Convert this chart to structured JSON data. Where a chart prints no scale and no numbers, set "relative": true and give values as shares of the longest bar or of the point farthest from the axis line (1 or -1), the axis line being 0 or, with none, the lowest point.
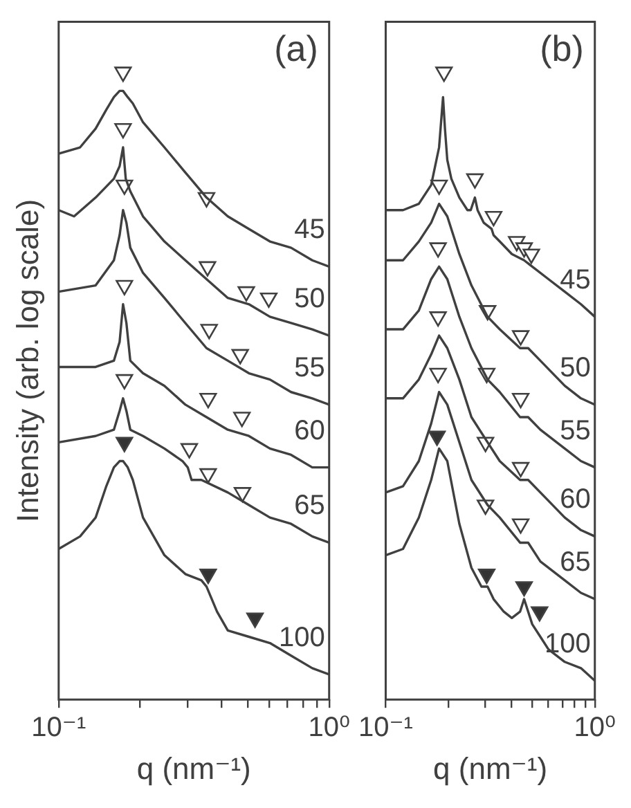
{
  "chart_data": [
    {
      "type": "line",
      "title": "(a)",
      "xlabel": "q (nm⁻¹)",
      "ylabel": "Intensity (arb. log scale)",
      "relative": true,
      "log": "x",
      "marker": "none",
      "xlim": [
        0.1,
        1
      ],
      "xticks": [
        {
          "value": 0.1,
          "label": "10⁻¹"
        },
        {
          "value": 0.2,
          "label": null
        },
        {
          "value": 0.3,
          "label": null
        },
        {
          "value": 0.4,
          "label": null
        },
        {
          "value": 0.5,
          "label": null
        },
        {
          "value": 0.6,
          "label": null
        },
        {
          "value": 0.7,
          "label": null
        },
        {
          "value": 0.8,
          "label": null
        },
        {
          "value": 0.9,
          "label": null
        },
        {
          "value": 1,
          "label": "10⁰"
        }
      ],
      "series": [
        {
          "name": "45",
          "color": "#404040",
          "x": [
            0.1,
            0.12,
            0.137,
            0.15,
            0.16,
            0.168,
            0.173,
            0.18,
            0.188,
            0.205,
            0.246,
            0.294,
            0.352,
            0.422,
            0.505,
            0.604,
            0.723,
            0.866,
            1.0
          ],
          "values": [
            0.87,
            0.88,
            0.91,
            0.94,
            0.96,
            0.97,
            0.97,
            0.96,
            0.95,
            0.92,
            0.88,
            0.84,
            0.8,
            0.77,
            0.75,
            0.73,
            0.72,
            0.7,
            0.69
          ]
        },
        {
          "name": "50",
          "color": "#404040",
          "x": [
            0.1,
            0.114,
            0.137,
            0.16,
            0.168,
            0.173,
            0.177,
            0.184,
            0.205,
            0.246,
            0.294,
            0.352,
            0.422,
            0.505,
            0.604,
            0.723,
            0.866,
            1.0
          ],
          "values": [
            0.78,
            0.77,
            0.8,
            0.83,
            0.85,
            0.88,
            0.83,
            0.81,
            0.77,
            0.73,
            0.7,
            0.67,
            0.64,
            0.63,
            0.61,
            0.6,
            0.59,
            0.58
          ]
        },
        {
          "name": "55",
          "color": "#404040",
          "x": [
            0.1,
            0.137,
            0.16,
            0.168,
            0.173,
            0.178,
            0.184,
            0.205,
            0.246,
            0.294,
            0.352,
            0.422,
            0.505,
            0.604,
            0.723,
            0.866,
            1.0
          ],
          "values": [
            0.65,
            0.66,
            0.7,
            0.74,
            0.78,
            0.76,
            0.72,
            0.68,
            0.64,
            0.6,
            0.56,
            0.54,
            0.52,
            0.51,
            0.49,
            0.48,
            0.47
          ]
        },
        {
          "name": "60",
          "color": "#404040",
          "x": [
            0.1,
            0.137,
            0.16,
            0.168,
            0.173,
            0.178,
            0.184,
            0.205,
            0.246,
            0.294,
            0.352,
            0.422,
            0.505,
            0.604,
            0.723,
            0.866,
            1.0
          ],
          "values": [
            0.53,
            0.53,
            0.54,
            0.57,
            0.63,
            0.6,
            0.54,
            0.52,
            0.5,
            0.47,
            0.45,
            0.43,
            0.42,
            0.4,
            0.39,
            0.37,
            0.37
          ]
        },
        {
          "name": "65",
          "color": "#404040",
          "x": [
            0.1,
            0.137,
            0.16,
            0.168,
            0.173,
            0.178,
            0.184,
            0.205,
            0.246,
            0.287,
            0.3,
            0.31,
            0.337,
            0.422,
            0.505,
            0.604,
            0.723,
            0.866,
            1.0
          ],
          "values": [
            0.41,
            0.42,
            0.43,
            0.46,
            0.48,
            0.46,
            0.43,
            0.42,
            0.4,
            0.38,
            0.37,
            0.35,
            0.35,
            0.33,
            0.31,
            0.29,
            0.28,
            0.26,
            0.25
          ]
        },
        {
          "name": "100",
          "color": "#404040",
          "x": [
            0.1,
            0.12,
            0.137,
            0.15,
            0.16,
            0.168,
            0.173,
            0.18,
            0.188,
            0.205,
            0.246,
            0.294,
            0.337,
            0.352,
            0.385,
            0.422,
            0.505,
            0.604,
            0.723,
            0.866,
            1.0
          ],
          "values": [
            0.24,
            0.26,
            0.29,
            0.34,
            0.37,
            0.38,
            0.38,
            0.37,
            0.35,
            0.29,
            0.23,
            0.2,
            0.19,
            0.18,
            0.14,
            0.11,
            0.1,
            0.09,
            0.07,
            0.05,
            0.04
          ]
        },
        {
          "type": "scatter",
          "marker": "triangle",
          "color": "#ffffff",
          "x": [
            0.173,
            0.173,
            0.352,
            0.175,
            0.355,
            0.494,
            0.598,
            0.175,
            0.36,
            0.469,
            0.175,
            0.357,
            0.476,
            0.304,
            0.357,
            0.478
          ],
          "values": [
            1.0,
            0.91,
            0.8,
            0.82,
            0.69,
            0.65,
            0.64,
            0.66,
            0.59,
            0.55,
            0.51,
            0.48,
            0.45,
            0.4,
            0.36,
            0.33
          ]
        },
        {
          "type": "scatter",
          "marker": "triangle",
          "color": "#333333",
          "x": [
            0.175,
            0.357,
            0.532
          ],
          "values": [
            0.41,
            0.2,
            0.13
          ]
        }
      ]
    },
    {
      "type": "line",
      "title": "(b)",
      "xlabel": "q (nm⁻¹)",
      "relative": true,
      "log": "x",
      "marker": "none",
      "xlim": [
        0.1,
        1
      ],
      "xticks": [
        {
          "value": 0.1,
          "label": "10⁻¹"
        },
        {
          "value": 0.2,
          "label": null
        },
        {
          "value": 0.3,
          "label": null
        },
        {
          "value": 0.4,
          "label": null
        },
        {
          "value": 0.5,
          "label": null
        },
        {
          "value": 0.6,
          "label": null
        },
        {
          "value": 0.7,
          "label": null
        },
        {
          "value": 0.8,
          "label": null
        },
        {
          "value": 0.9,
          "label": null
        },
        {
          "value": 1,
          "label": "10⁰"
        }
      ],
      "series": [
        {
          "name": "45",
          "color": "#404040",
          "x": [
            0.1,
            0.121,
            0.144,
            0.165,
            0.18,
            0.188,
            0.192,
            0.197,
            0.206,
            0.225,
            0.246,
            0.255,
            0.267,
            0.275,
            0.294,
            0.321,
            0.328,
            0.351,
            0.401,
            0.459,
            0.502,
            0.6,
            0.718,
            0.858,
            1.0
          ],
          "values": [
            0.78,
            0.78,
            0.79,
            0.82,
            0.88,
            0.96,
            0.91,
            0.86,
            0.83,
            0.8,
            0.78,
            0.78,
            0.8,
            0.78,
            0.76,
            0.75,
            0.74,
            0.73,
            0.71,
            0.7,
            0.69,
            0.67,
            0.65,
            0.63,
            0.61
          ]
        },
        {
          "name": "50",
          "color": "#404040",
          "x": [
            0.1,
            0.121,
            0.144,
            0.165,
            0.18,
            0.197,
            0.225,
            0.257,
            0.307,
            0.351,
            0.439,
            0.48,
            0.549,
            0.718,
            0.858,
            1.0
          ],
          "values": [
            0.7,
            0.7,
            0.73,
            0.76,
            0.79,
            0.77,
            0.71,
            0.66,
            0.61,
            0.59,
            0.56,
            0.56,
            0.54,
            0.5,
            0.48,
            0.47
          ]
        },
        {
          "name": "55",
          "color": "#404040",
          "x": [
            0.1,
            0.121,
            0.144,
            0.165,
            0.18,
            0.197,
            0.225,
            0.257,
            0.307,
            0.351,
            0.439,
            0.48,
            0.549,
            0.718,
            0.858,
            1.0
          ],
          "values": [
            0.59,
            0.59,
            0.62,
            0.67,
            0.69,
            0.67,
            0.61,
            0.56,
            0.51,
            0.49,
            0.45,
            0.45,
            0.43,
            0.4,
            0.38,
            0.37
          ]
        },
        {
          "name": "60",
          "color": "#404040",
          "x": [
            0.1,
            0.121,
            0.144,
            0.165,
            0.18,
            0.197,
            0.225,
            0.257,
            0.307,
            0.351,
            0.439,
            0.48,
            0.549,
            0.718,
            0.858,
            1.0
          ],
          "values": [
            0.48,
            0.48,
            0.51,
            0.55,
            0.58,
            0.56,
            0.51,
            0.45,
            0.41,
            0.38,
            0.35,
            0.35,
            0.33,
            0.29,
            0.27,
            0.26
          ]
        },
        {
          "name": "65",
          "color": "#404040",
          "x": [
            0.1,
            0.121,
            0.144,
            0.165,
            0.18,
            0.197,
            0.225,
            0.257,
            0.307,
            0.351,
            0.439,
            0.48,
            0.549,
            0.718,
            0.858,
            1.0
          ],
          "values": [
            0.33,
            0.34,
            0.38,
            0.44,
            0.49,
            0.47,
            0.41,
            0.35,
            0.31,
            0.29,
            0.25,
            0.25,
            0.22,
            0.19,
            0.17,
            0.16
          ]
        },
        {
          "name": "100",
          "color": "#404040",
          "x": [
            0.1,
            0.121,
            0.144,
            0.165,
            0.18,
            0.197,
            0.225,
            0.257,
            0.287,
            0.307,
            0.328,
            0.367,
            0.401,
            0.439,
            0.459,
            0.48,
            0.502,
            0.549,
            0.6,
            0.718,
            0.858,
            1.0
          ],
          "values": [
            0.23,
            0.24,
            0.29,
            0.35,
            0.4,
            0.38,
            0.28,
            0.21,
            0.18,
            0.18,
            0.16,
            0.14,
            0.13,
            0.14,
            0.16,
            0.14,
            0.12,
            0.1,
            0.08,
            0.06,
            0.05,
            0.03
          ]
        },
        {
          "type": "scatter",
          "marker": "triangle",
          "color": "#ffffff",
          "x": [
            0.19,
            0.267,
            0.18,
            0.328,
            0.423,
            0.459,
            0.497,
            0.178,
            0.307,
            0.442,
            0.178,
            0.304,
            0.442,
            0.178,
            0.3,
            0.442,
            0.3,
            0.442
          ],
          "values": [
            1.0,
            0.83,
            0.82,
            0.77,
            0.73,
            0.72,
            0.71,
            0.72,
            0.62,
            0.58,
            0.61,
            0.52,
            0.48,
            0.52,
            0.41,
            0.37,
            0.31,
            0.28
          ]
        },
        {
          "type": "scatter",
          "marker": "triangle",
          "color": "#333333",
          "x": [
            0.176,
            0.304,
            0.459,
            0.544
          ],
          "values": [
            0.42,
            0.2,
            0.18,
            0.14
          ]
        }
      ]
    }
  ]
}
